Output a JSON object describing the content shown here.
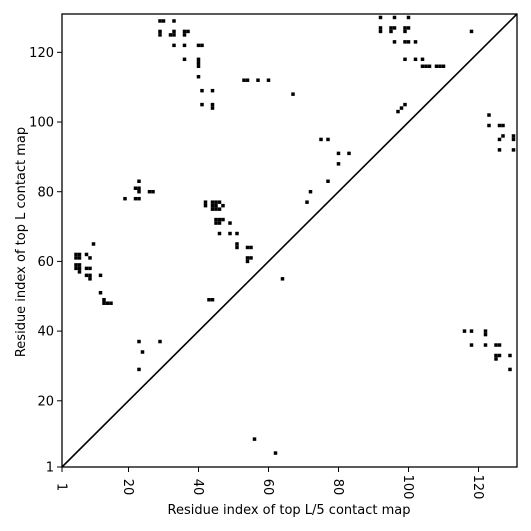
{
  "chart_data": {
    "type": "heatmap",
    "xlabel": "Residue index of top L/5 contact map",
    "ylabel": "Residue index of top L contact map",
    "xlim": [
      1,
      131
    ],
    "ylim": [
      1,
      131
    ],
    "xticks": [
      1,
      20,
      40,
      60,
      80,
      100,
      120
    ],
    "xtick_labels": [
      "1",
      "20",
      "40",
      "60",
      "80",
      "100",
      "120"
    ],
    "yticks": [
      1,
      20,
      40,
      60,
      80,
      100,
      120
    ],
    "ytick_labels": [
      "1",
      "20",
      "40",
      "60",
      "80",
      "100",
      "120"
    ],
    "diagonal": true,
    "cell_color": "#000000",
    "upper_triangle_contacts": [
      [
        29,
        129
      ],
      [
        30,
        129
      ],
      [
        33,
        129
      ],
      [
        29,
        126
      ],
      [
        29,
        125
      ],
      [
        32,
        125
      ],
      [
        33,
        125
      ],
      [
        33,
        126
      ],
      [
        36,
        126
      ],
      [
        37,
        126
      ],
      [
        36,
        125
      ],
      [
        33,
        122
      ],
      [
        36,
        122
      ],
      [
        40,
        122
      ],
      [
        41,
        122
      ],
      [
        36,
        118
      ],
      [
        40,
        118
      ],
      [
        40,
        117
      ],
      [
        40,
        116
      ],
      [
        40,
        113
      ],
      [
        41,
        109
      ],
      [
        44,
        109
      ],
      [
        41,
        105
      ],
      [
        44,
        105
      ],
      [
        44,
        104
      ],
      [
        53,
        112
      ],
      [
        54,
        112
      ],
      [
        57,
        112
      ],
      [
        60,
        112
      ],
      [
        67,
        108
      ],
      [
        75,
        95
      ],
      [
        77,
        95
      ],
      [
        80,
        91
      ],
      [
        83,
        91
      ],
      [
        80,
        88
      ],
      [
        77,
        83
      ],
      [
        72,
        80
      ],
      [
        71,
        77
      ],
      [
        19,
        78
      ],
      [
        22,
        78
      ],
      [
        23,
        78
      ],
      [
        22,
        81
      ],
      [
        23,
        81
      ],
      [
        23,
        80
      ],
      [
        23,
        83
      ],
      [
        26,
        80
      ],
      [
        27,
        80
      ],
      [
        42,
        77
      ],
      [
        42,
        76
      ],
      [
        44,
        77
      ],
      [
        45,
        77
      ],
      [
        46,
        77
      ],
      [
        44,
        76
      ],
      [
        45,
        76
      ],
      [
        47,
        76
      ],
      [
        44,
        75
      ],
      [
        45,
        75
      ],
      [
        46,
        75
      ],
      [
        45,
        72
      ],
      [
        46,
        72
      ],
      [
        47,
        72
      ],
      [
        45,
        71
      ],
      [
        46,
        71
      ],
      [
        49,
        71
      ],
      [
        46,
        68
      ],
      [
        49,
        68
      ],
      [
        51,
        68
      ],
      [
        51,
        65
      ],
      [
        51,
        64
      ],
      [
        54,
        64
      ],
      [
        55,
        64
      ],
      [
        54,
        61
      ],
      [
        55,
        61
      ],
      [
        54,
        60
      ],
      [
        64,
        55
      ],
      [
        5,
        62
      ],
      [
        6,
        62
      ],
      [
        5,
        61
      ],
      [
        6,
        61
      ],
      [
        8,
        62
      ],
      [
        9,
        61
      ],
      [
        5,
        59
      ],
      [
        6,
        59
      ],
      [
        5,
        58
      ],
      [
        6,
        58
      ],
      [
        6,
        57
      ],
      [
        8,
        58
      ],
      [
        9,
        58
      ],
      [
        8,
        56
      ],
      [
        9,
        56
      ],
      [
        9,
        55
      ],
      [
        10,
        65
      ],
      [
        12,
        56
      ],
      [
        12,
        51
      ],
      [
        13,
        49
      ],
      [
        13,
        48
      ],
      [
        14,
        48
      ],
      [
        15,
        48
      ],
      [
        43,
        49
      ],
      [
        44,
        49
      ],
      [
        23,
        37
      ],
      [
        29,
        37
      ],
      [
        24,
        34
      ],
      [
        23,
        29
      ],
      [
        56,
        9
      ],
      [
        62,
        5
      ]
    ],
    "lower_triangle_contacts": [
      [
        92,
        130
      ],
      [
        96,
        130
      ],
      [
        100,
        130
      ],
      [
        92,
        127
      ],
      [
        95,
        127
      ],
      [
        96,
        127
      ],
      [
        99,
        127
      ],
      [
        100,
        127
      ],
      [
        92,
        126
      ],
      [
        95,
        126
      ],
      [
        99,
        126
      ],
      [
        96,
        123
      ],
      [
        99,
        123
      ],
      [
        100,
        123
      ],
      [
        102,
        123
      ],
      [
        99,
        118
      ],
      [
        102,
        118
      ],
      [
        104,
        118
      ],
      [
        104,
        116
      ],
      [
        105,
        116
      ],
      [
        106,
        116
      ],
      [
        108,
        116
      ],
      [
        109,
        116
      ],
      [
        110,
        116
      ],
      [
        97,
        103
      ],
      [
        98,
        104
      ],
      [
        99,
        105
      ],
      [
        118,
        126
      ],
      [
        123,
        102
      ],
      [
        123,
        99
      ],
      [
        126,
        99
      ],
      [
        127,
        99
      ],
      [
        127,
        96
      ],
      [
        126,
        95
      ],
      [
        130,
        96
      ],
      [
        130,
        95
      ],
      [
        126,
        92
      ],
      [
        130,
        92
      ],
      [
        116,
        40
      ],
      [
        118,
        40
      ],
      [
        122,
        40
      ],
      [
        122,
        39
      ],
      [
        118,
        36
      ],
      [
        122,
        36
      ],
      [
        125,
        36
      ],
      [
        126,
        36
      ],
      [
        125,
        33
      ],
      [
        126,
        33
      ],
      [
        129,
        33
      ],
      [
        125,
        32
      ],
      [
        129,
        29
      ]
    ]
  }
}
